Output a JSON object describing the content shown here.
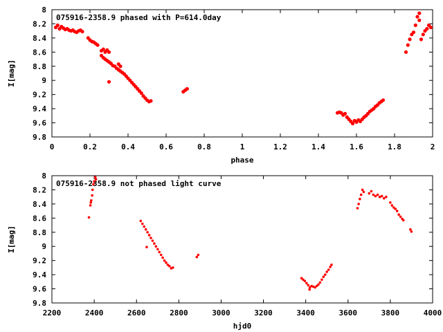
{
  "chart_data": [
    {
      "type": "scatter",
      "title": "075916-2358.9 phased with P=614.0day",
      "xlabel": "phase",
      "ylabel": "I[mag]",
      "xlim": [
        0,
        2
      ],
      "ylim": [
        9.8,
        8
      ],
      "y_inverted": true,
      "xticks": [
        "0",
        "0.2",
        "0.4",
        "0.6",
        "0.8",
        "1",
        "1.2",
        "1.4",
        "1.6",
        "1.8",
        "2"
      ],
      "yticks": [
        "8",
        "8.2",
        "8.4",
        "8.6",
        "8.8",
        "9",
        "9.2",
        "9.4",
        "9.6",
        "9.8"
      ],
      "marker": "dense red points",
      "color": "#ff0000",
      "grid": false,
      "series": [
        {
          "points": [
            [
              0.02,
              8.25
            ],
            [
              0.03,
              8.22
            ],
            [
              0.04,
              8.27
            ],
            [
              0.05,
              8.24
            ],
            [
              0.06,
              8.26
            ],
            [
              0.07,
              8.28
            ],
            [
              0.08,
              8.27
            ],
            [
              0.09,
              8.29
            ],
            [
              0.1,
              8.3
            ],
            [
              0.11,
              8.29
            ],
            [
              0.12,
              8.31
            ],
            [
              0.13,
              8.32
            ],
            [
              0.14,
              8.3
            ],
            [
              0.15,
              8.29
            ],
            [
              0.16,
              8.31
            ],
            [
              0.19,
              8.4
            ],
            [
              0.2,
              8.43
            ],
            [
              0.21,
              8.45
            ],
            [
              0.22,
              8.46
            ],
            [
              0.23,
              8.48
            ],
            [
              0.24,
              8.5
            ],
            [
              0.26,
              8.58
            ],
            [
              0.27,
              8.56
            ],
            [
              0.28,
              8.6
            ],
            [
              0.29,
              8.57
            ],
            [
              0.3,
              8.6
            ],
            [
              0.26,
              8.65
            ],
            [
              0.27,
              8.68
            ],
            [
              0.28,
              8.7
            ],
            [
              0.29,
              8.72
            ],
            [
              0.3,
              8.74
            ],
            [
              0.31,
              8.76
            ],
            [
              0.32,
              8.79
            ],
            [
              0.33,
              8.8
            ],
            [
              0.34,
              8.83
            ],
            [
              0.35,
              8.85
            ],
            [
              0.36,
              8.87
            ],
            [
              0.37,
              8.89
            ],
            [
              0.38,
              8.91
            ],
            [
              0.39,
              8.94
            ],
            [
              0.4,
              8.97
            ],
            [
              0.41,
              9.0
            ],
            [
              0.42,
              9.03
            ],
            [
              0.43,
              9.06
            ],
            [
              0.44,
              9.09
            ],
            [
              0.45,
              9.12
            ],
            [
              0.46,
              9.15
            ],
            [
              0.47,
              9.18
            ],
            [
              0.48,
              9.22
            ],
            [
              0.49,
              9.25
            ],
            [
              0.5,
              9.28
            ],
            [
              0.51,
              9.3
            ],
            [
              0.52,
              9.29
            ],
            [
              0.35,
              8.77
            ],
            [
              0.36,
              8.8
            ],
            [
              0.3,
              9.02
            ],
            [
              0.69,
              9.16
            ],
            [
              0.7,
              9.14
            ],
            [
              0.71,
              9.12
            ],
            [
              1.5,
              9.46
            ],
            [
              1.51,
              9.45
            ],
            [
              1.52,
              9.46
            ],
            [
              1.53,
              9.49
            ],
            [
              1.54,
              9.47
            ],
            [
              1.55,
              9.52
            ],
            [
              1.56,
              9.55
            ],
            [
              1.57,
              9.58
            ],
            [
              1.58,
              9.61
            ],
            [
              1.59,
              9.57
            ],
            [
              1.6,
              9.59
            ],
            [
              1.61,
              9.56
            ],
            [
              1.62,
              9.58
            ],
            [
              1.63,
              9.55
            ],
            [
              1.64,
              9.52
            ],
            [
              1.65,
              9.5
            ],
            [
              1.66,
              9.47
            ],
            [
              1.67,
              9.44
            ],
            [
              1.68,
              9.42
            ],
            [
              1.69,
              9.4
            ],
            [
              1.7,
              9.37
            ],
            [
              1.71,
              9.35
            ],
            [
              1.72,
              9.32
            ],
            [
              1.73,
              9.3
            ],
            [
              1.74,
              9.28
            ],
            [
              1.86,
              8.6
            ],
            [
              1.87,
              8.5
            ],
            [
              1.88,
              8.42
            ],
            [
              1.89,
              8.35
            ],
            [
              1.9,
              8.32
            ],
            [
              1.91,
              8.22
            ],
            [
              1.92,
              8.1
            ],
            [
              1.93,
              8.05
            ],
            [
              1.93,
              8.15
            ],
            [
              1.94,
              8.42
            ],
            [
              1.95,
              8.35
            ],
            [
              1.96,
              8.3
            ],
            [
              1.97,
              8.27
            ],
            [
              1.98,
              8.22
            ],
            [
              1.99,
              8.25
            ]
          ]
        }
      ]
    },
    {
      "type": "scatter",
      "title": "075916-2358.9 not phased light curve",
      "xlabel": "hjd0",
      "ylabel": "I[mag]",
      "xlim": [
        2200,
        4000
      ],
      "ylim": [
        9.8,
        8
      ],
      "y_inverted": true,
      "xticks": [
        "2200",
        "2400",
        "2600",
        "2800",
        "3000",
        "3200",
        "3400",
        "3600",
        "3800",
        "4000"
      ],
      "yticks": [
        "8",
        "8.2",
        "8.4",
        "8.6",
        "8.8",
        "9",
        "9.2",
        "9.4",
        "9.6",
        "9.8"
      ],
      "marker": "red points",
      "color": "#ff0000",
      "grid": false,
      "series": [
        {
          "points": [
            [
              2375,
              8.59
            ],
            [
              2382,
              8.42
            ],
            [
              2384,
              8.38
            ],
            [
              2386,
              8.35
            ],
            [
              2390,
              8.28
            ],
            [
              2392,
              8.2
            ],
            [
              2396,
              8.12
            ],
            [
              2400,
              8.08
            ],
            [
              2405,
              8.02
            ],
            [
              2408,
              8.05
            ],
            [
              2620,
              8.64
            ],
            [
              2628,
              8.68
            ],
            [
              2636,
              8.72
            ],
            [
              2644,
              8.76
            ],
            [
              2652,
              8.8
            ],
            [
              2660,
              8.84
            ],
            [
              2668,
              8.88
            ],
            [
              2676,
              8.92
            ],
            [
              2684,
              8.96
            ],
            [
              2692,
              9.0
            ],
            [
              2700,
              9.04
            ],
            [
              2708,
              9.08
            ],
            [
              2716,
              9.12
            ],
            [
              2724,
              9.16
            ],
            [
              2732,
              9.2
            ],
            [
              2740,
              9.23
            ],
            [
              2748,
              9.26
            ],
            [
              2756,
              9.28
            ],
            [
              2764,
              9.31
            ],
            [
              2772,
              9.3
            ],
            [
              2648,
              9.01
            ],
            [
              2885,
              9.15
            ],
            [
              2892,
              9.12
            ],
            [
              3380,
              9.45
            ],
            [
              3388,
              9.47
            ],
            [
              3396,
              9.49
            ],
            [
              3404,
              9.52
            ],
            [
              3412,
              9.55
            ],
            [
              3420,
              9.58
            ],
            [
              3428,
              9.56
            ],
            [
              3436,
              9.57
            ],
            [
              3444,
              9.58
            ],
            [
              3452,
              9.56
            ],
            [
              3460,
              9.54
            ],
            [
              3468,
              9.51
            ],
            [
              3476,
              9.47
            ],
            [
              3484,
              9.43
            ],
            [
              3492,
              9.4
            ],
            [
              3500,
              9.36
            ],
            [
              3508,
              9.33
            ],
            [
              3516,
              9.29
            ],
            [
              3522,
              9.26
            ],
            [
              3418,
              9.61
            ],
            [
              3645,
              8.46
            ],
            [
              3650,
              8.4
            ],
            [
              3656,
              8.33
            ],
            [
              3662,
              8.27
            ],
            [
              3668,
              8.2
            ],
            [
              3674,
              8.23
            ],
            [
              3700,
              8.25
            ],
            [
              3710,
              8.22
            ],
            [
              3720,
              8.27
            ],
            [
              3730,
              8.29
            ],
            [
              3740,
              8.27
            ],
            [
              3750,
              8.3
            ],
            [
              3760,
              8.29
            ],
            [
              3770,
              8.32
            ],
            [
              3780,
              8.3
            ],
            [
              3800,
              8.38
            ],
            [
              3808,
              8.42
            ],
            [
              3816,
              8.45
            ],
            [
              3824,
              8.47
            ],
            [
              3832,
              8.5
            ],
            [
              3840,
              8.55
            ],
            [
              3848,
              8.58
            ],
            [
              3856,
              8.61
            ],
            [
              3862,
              8.63
            ],
            [
              3895,
              8.76
            ],
            [
              3900,
              8.79
            ]
          ]
        }
      ]
    }
  ]
}
